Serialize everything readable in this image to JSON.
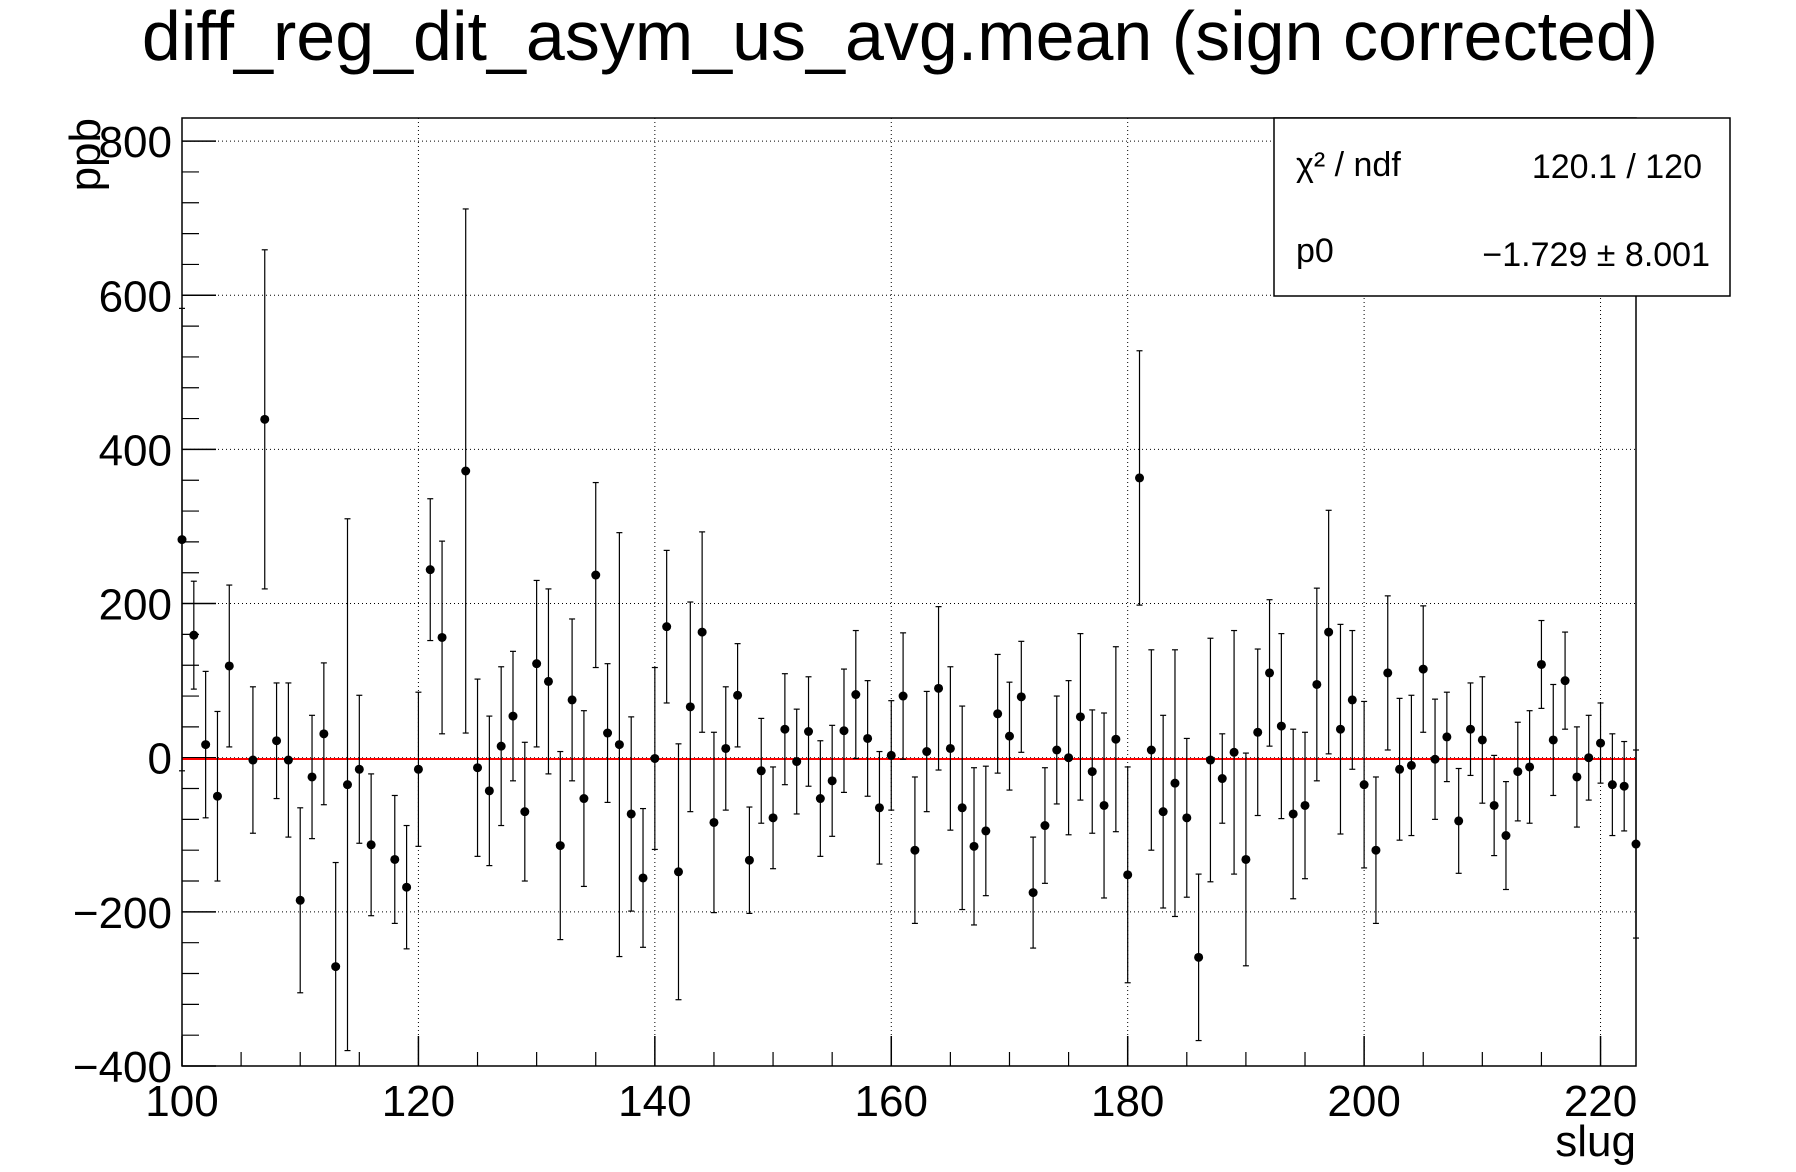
{
  "chart_data": {
    "type": "scatter",
    "title": "diff_reg_dit_asym_us_avg.mean (sign corrected)",
    "xlabel": "slug",
    "ylabel": "ppb",
    "xlim": [
      100,
      223
    ],
    "ylim": [
      -400,
      830
    ],
    "x_ticks": [
      "100",
      "120",
      "140",
      "160",
      "180",
      "200",
      "220"
    ],
    "y_ticks": [
      "−400",
      "−200",
      "0",
      "200",
      "400",
      "600",
      "800"
    ],
    "grid": true,
    "fit": {
      "name": "p0",
      "value": -1.729,
      "color": "#ff0000"
    },
    "stats_box": {
      "position": "top-right",
      "rows": [
        {
          "label": "χ² / ndf",
          "value": "120.1 / 120"
        },
        {
          "label": "p0",
          "value": "−1.729 ± 8.001"
        }
      ]
    },
    "points": [
      [
        100,
        283,
        300
      ],
      [
        101,
        159,
        70
      ],
      [
        102,
        17,
        95
      ],
      [
        103,
        -50,
        110
      ],
      [
        104,
        119,
        105
      ],
      [
        106,
        -3,
        95
      ],
      [
        107,
        439,
        220
      ],
      [
        108,
        22,
        75
      ],
      [
        109,
        -3,
        100
      ],
      [
        110,
        -185,
        120
      ],
      [
        111,
        -25,
        80
      ],
      [
        112,
        31,
        92
      ],
      [
        113,
        -271,
        135
      ],
      [
        114,
        -35,
        345
      ],
      [
        115,
        -15,
        96
      ],
      [
        116,
        -113,
        92
      ],
      [
        118,
        -132,
        83
      ],
      [
        119,
        -168,
        80
      ],
      [
        120,
        -15,
        100
      ],
      [
        121,
        244,
        92
      ],
      [
        122,
        156,
        125
      ],
      [
        124,
        372,
        340
      ],
      [
        125,
        -13,
        115
      ],
      [
        126,
        -43,
        97
      ],
      [
        127,
        15,
        103
      ],
      [
        128,
        54,
        84
      ],
      [
        129,
        -70,
        90
      ],
      [
        130,
        122,
        108
      ],
      [
        131,
        99,
        120
      ],
      [
        132,
        -114,
        122
      ],
      [
        133,
        75,
        105
      ],
      [
        134,
        -53,
        114
      ],
      [
        135,
        237,
        120
      ],
      [
        136,
        32,
        90
      ],
      [
        137,
        17,
        275
      ],
      [
        138,
        -73,
        126
      ],
      [
        139,
        -156,
        90
      ],
      [
        140,
        -1,
        118
      ],
      [
        141,
        170,
        99
      ],
      [
        142,
        -148,
        166
      ],
      [
        143,
        66,
        136
      ],
      [
        144,
        163,
        130
      ],
      [
        145,
        -84,
        117
      ],
      [
        146,
        12,
        80
      ],
      [
        147,
        81,
        67
      ],
      [
        148,
        -133,
        69
      ],
      [
        149,
        -17,
        68
      ],
      [
        150,
        -78,
        66
      ],
      [
        151,
        37,
        72
      ],
      [
        152,
        -5,
        68
      ],
      [
        153,
        34,
        71
      ],
      [
        154,
        -53,
        75
      ],
      [
        155,
        -30,
        72
      ],
      [
        156,
        35,
        80
      ],
      [
        157,
        82,
        83
      ],
      [
        158,
        25,
        75
      ],
      [
        159,
        -65,
        73
      ],
      [
        160,
        3,
        71
      ],
      [
        161,
        80,
        82
      ],
      [
        162,
        -120,
        95
      ],
      [
        163,
        8,
        78
      ],
      [
        164,
        90,
        106
      ],
      [
        165,
        12,
        106
      ],
      [
        166,
        -65,
        132
      ],
      [
        167,
        -115,
        102
      ],
      [
        168,
        -95,
        84
      ],
      [
        169,
        57,
        77
      ],
      [
        170,
        28,
        70
      ],
      [
        171,
        79,
        72
      ],
      [
        172,
        -175,
        72
      ],
      [
        173,
        -88,
        75
      ],
      [
        174,
        10,
        70
      ],
      [
        175,
        0,
        100
      ],
      [
        176,
        53,
        108
      ],
      [
        177,
        -18,
        80
      ],
      [
        178,
        -62,
        120
      ],
      [
        179,
        24,
        120
      ],
      [
        180,
        -152,
        140
      ],
      [
        181,
        363,
        165
      ],
      [
        182,
        10,
        130
      ],
      [
        183,
        -70,
        125
      ],
      [
        184,
        -33,
        173
      ],
      [
        185,
        -78,
        103
      ],
      [
        186,
        -259,
        108
      ],
      [
        187,
        -3,
        158
      ],
      [
        188,
        -27,
        58
      ],
      [
        189,
        7,
        158
      ],
      [
        190,
        -132,
        138
      ],
      [
        191,
        33,
        108
      ],
      [
        192,
        110,
        95
      ],
      [
        193,
        41,
        120
      ],
      [
        194,
        -73,
        110
      ],
      [
        195,
        -62,
        95
      ],
      [
        196,
        95,
        125
      ],
      [
        197,
        163,
        158
      ],
      [
        198,
        37,
        136
      ],
      [
        199,
        75,
        90
      ],
      [
        200,
        -35,
        108
      ],
      [
        201,
        -120,
        95
      ],
      [
        202,
        110,
        100
      ],
      [
        203,
        -15,
        92
      ],
      [
        204,
        -10,
        91
      ],
      [
        205,
        115,
        82
      ],
      [
        206,
        -2,
        78
      ],
      [
        207,
        27,
        58
      ],
      [
        208,
        -82,
        68
      ],
      [
        209,
        37,
        60
      ],
      [
        210,
        23,
        82
      ],
      [
        211,
        -62,
        65
      ],
      [
        212,
        -101,
        70
      ],
      [
        213,
        -18,
        64
      ],
      [
        214,
        -12,
        73
      ],
      [
        215,
        121,
        57
      ],
      [
        216,
        23,
        72
      ],
      [
        217,
        100,
        63
      ],
      [
        218,
        -25,
        65
      ],
      [
        219,
        0,
        55
      ],
      [
        220,
        19,
        52
      ],
      [
        221,
        -35,
        66
      ],
      [
        222,
        -37,
        58
      ],
      [
        223,
        -112,
        122
      ]
    ]
  }
}
